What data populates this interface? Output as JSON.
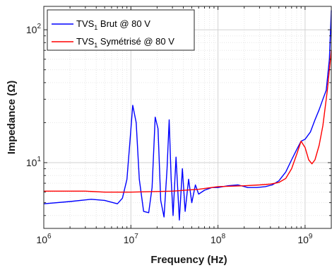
{
  "chart_data": {
    "type": "line",
    "title": "",
    "xlabel": "Frequency (Hz)",
    "ylabel": "Impedance  (Ω)",
    "x_scale": "log",
    "y_scale": "log",
    "xlim": [
      1000000,
      2000000000
    ],
    "ylim": [
      3.2,
      150
    ],
    "grid": true,
    "legend_position": "top-left",
    "x_ticks": [
      {
        "base": "10",
        "exp": "6",
        "value": 1000000
      },
      {
        "base": "10",
        "exp": "7",
        "value": 10000000
      },
      {
        "base": "10",
        "exp": "8",
        "value": 100000000
      },
      {
        "base": "10",
        "exp": "9",
        "value": 1000000000
      }
    ],
    "y_ticks": [
      {
        "base": "10",
        "exp": "1",
        "value": 10
      },
      {
        "base": "10",
        "exp": "2",
        "value": 100
      }
    ],
    "series": [
      {
        "name_main": "TVS",
        "name_sub": "1",
        "name_rest": " Brut @ 80 V",
        "color": "#0000ff",
        "x": [
          1000000,
          2000000,
          3500000,
          5000000,
          7000000,
          8000000,
          9000000,
          9800000,
          10500000,
          11500000,
          12500000,
          14000000,
          16000000,
          17500000,
          19000000,
          20500000,
          22000000,
          24000000,
          26000000,
          27500000,
          29000000,
          30500000,
          33000000,
          36000000,
          39000000,
          42000000,
          46000000,
          50000000,
          55000000,
          60000000,
          70000000,
          85000000,
          100000000,
          130000000,
          170000000,
          220000000,
          280000000,
          350000000,
          420000000,
          500000000,
          600000000,
          700000000,
          800000000,
          900000000,
          1000000000,
          1150000000,
          1300000000,
          1450000000,
          1600000000,
          1750000000,
          1900000000,
          2000000000
        ],
        "y": [
          4.9,
          5.1,
          5.3,
          5.2,
          4.9,
          5.4,
          7.5,
          15,
          27,
          20,
          7.5,
          4.3,
          4.2,
          6.5,
          22,
          18,
          5.2,
          3.9,
          9,
          21,
          7.5,
          4,
          11,
          3.7,
          9,
          4.3,
          7.5,
          5,
          6.8,
          5.8,
          6.2,
          6.5,
          6.5,
          6.7,
          6.8,
          6.5,
          6.5,
          6.6,
          6.8,
          7.3,
          8.5,
          10.5,
          12.5,
          14.5,
          15,
          17,
          21,
          25,
          30,
          35,
          60,
          140
        ]
      },
      {
        "name_main": "TVS",
        "name_sub": "1",
        "name_rest": " Symétrisé @ 80 V",
        "color": "#ff0000",
        "x": [
          1000000,
          3000000,
          5000000,
          8000000,
          10000000,
          30000000,
          60000000,
          100000000,
          200000000,
          300000000,
          400000000,
          500000000,
          600000000,
          700000000,
          800000000,
          900000000,
          1000000000,
          1100000000,
          1200000000,
          1300000000,
          1450000000,
          1600000000,
          1800000000,
          2000000000
        ],
        "y": [
          6.1,
          6.1,
          6.0,
          6.0,
          6.0,
          6.1,
          6.3,
          6.6,
          6.7,
          6.8,
          6.9,
          7.1,
          7.6,
          9.0,
          11.5,
          14.5,
          13.0,
          10.5,
          9.8,
          10.5,
          13.5,
          19,
          35,
          70
        ]
      }
    ]
  }
}
